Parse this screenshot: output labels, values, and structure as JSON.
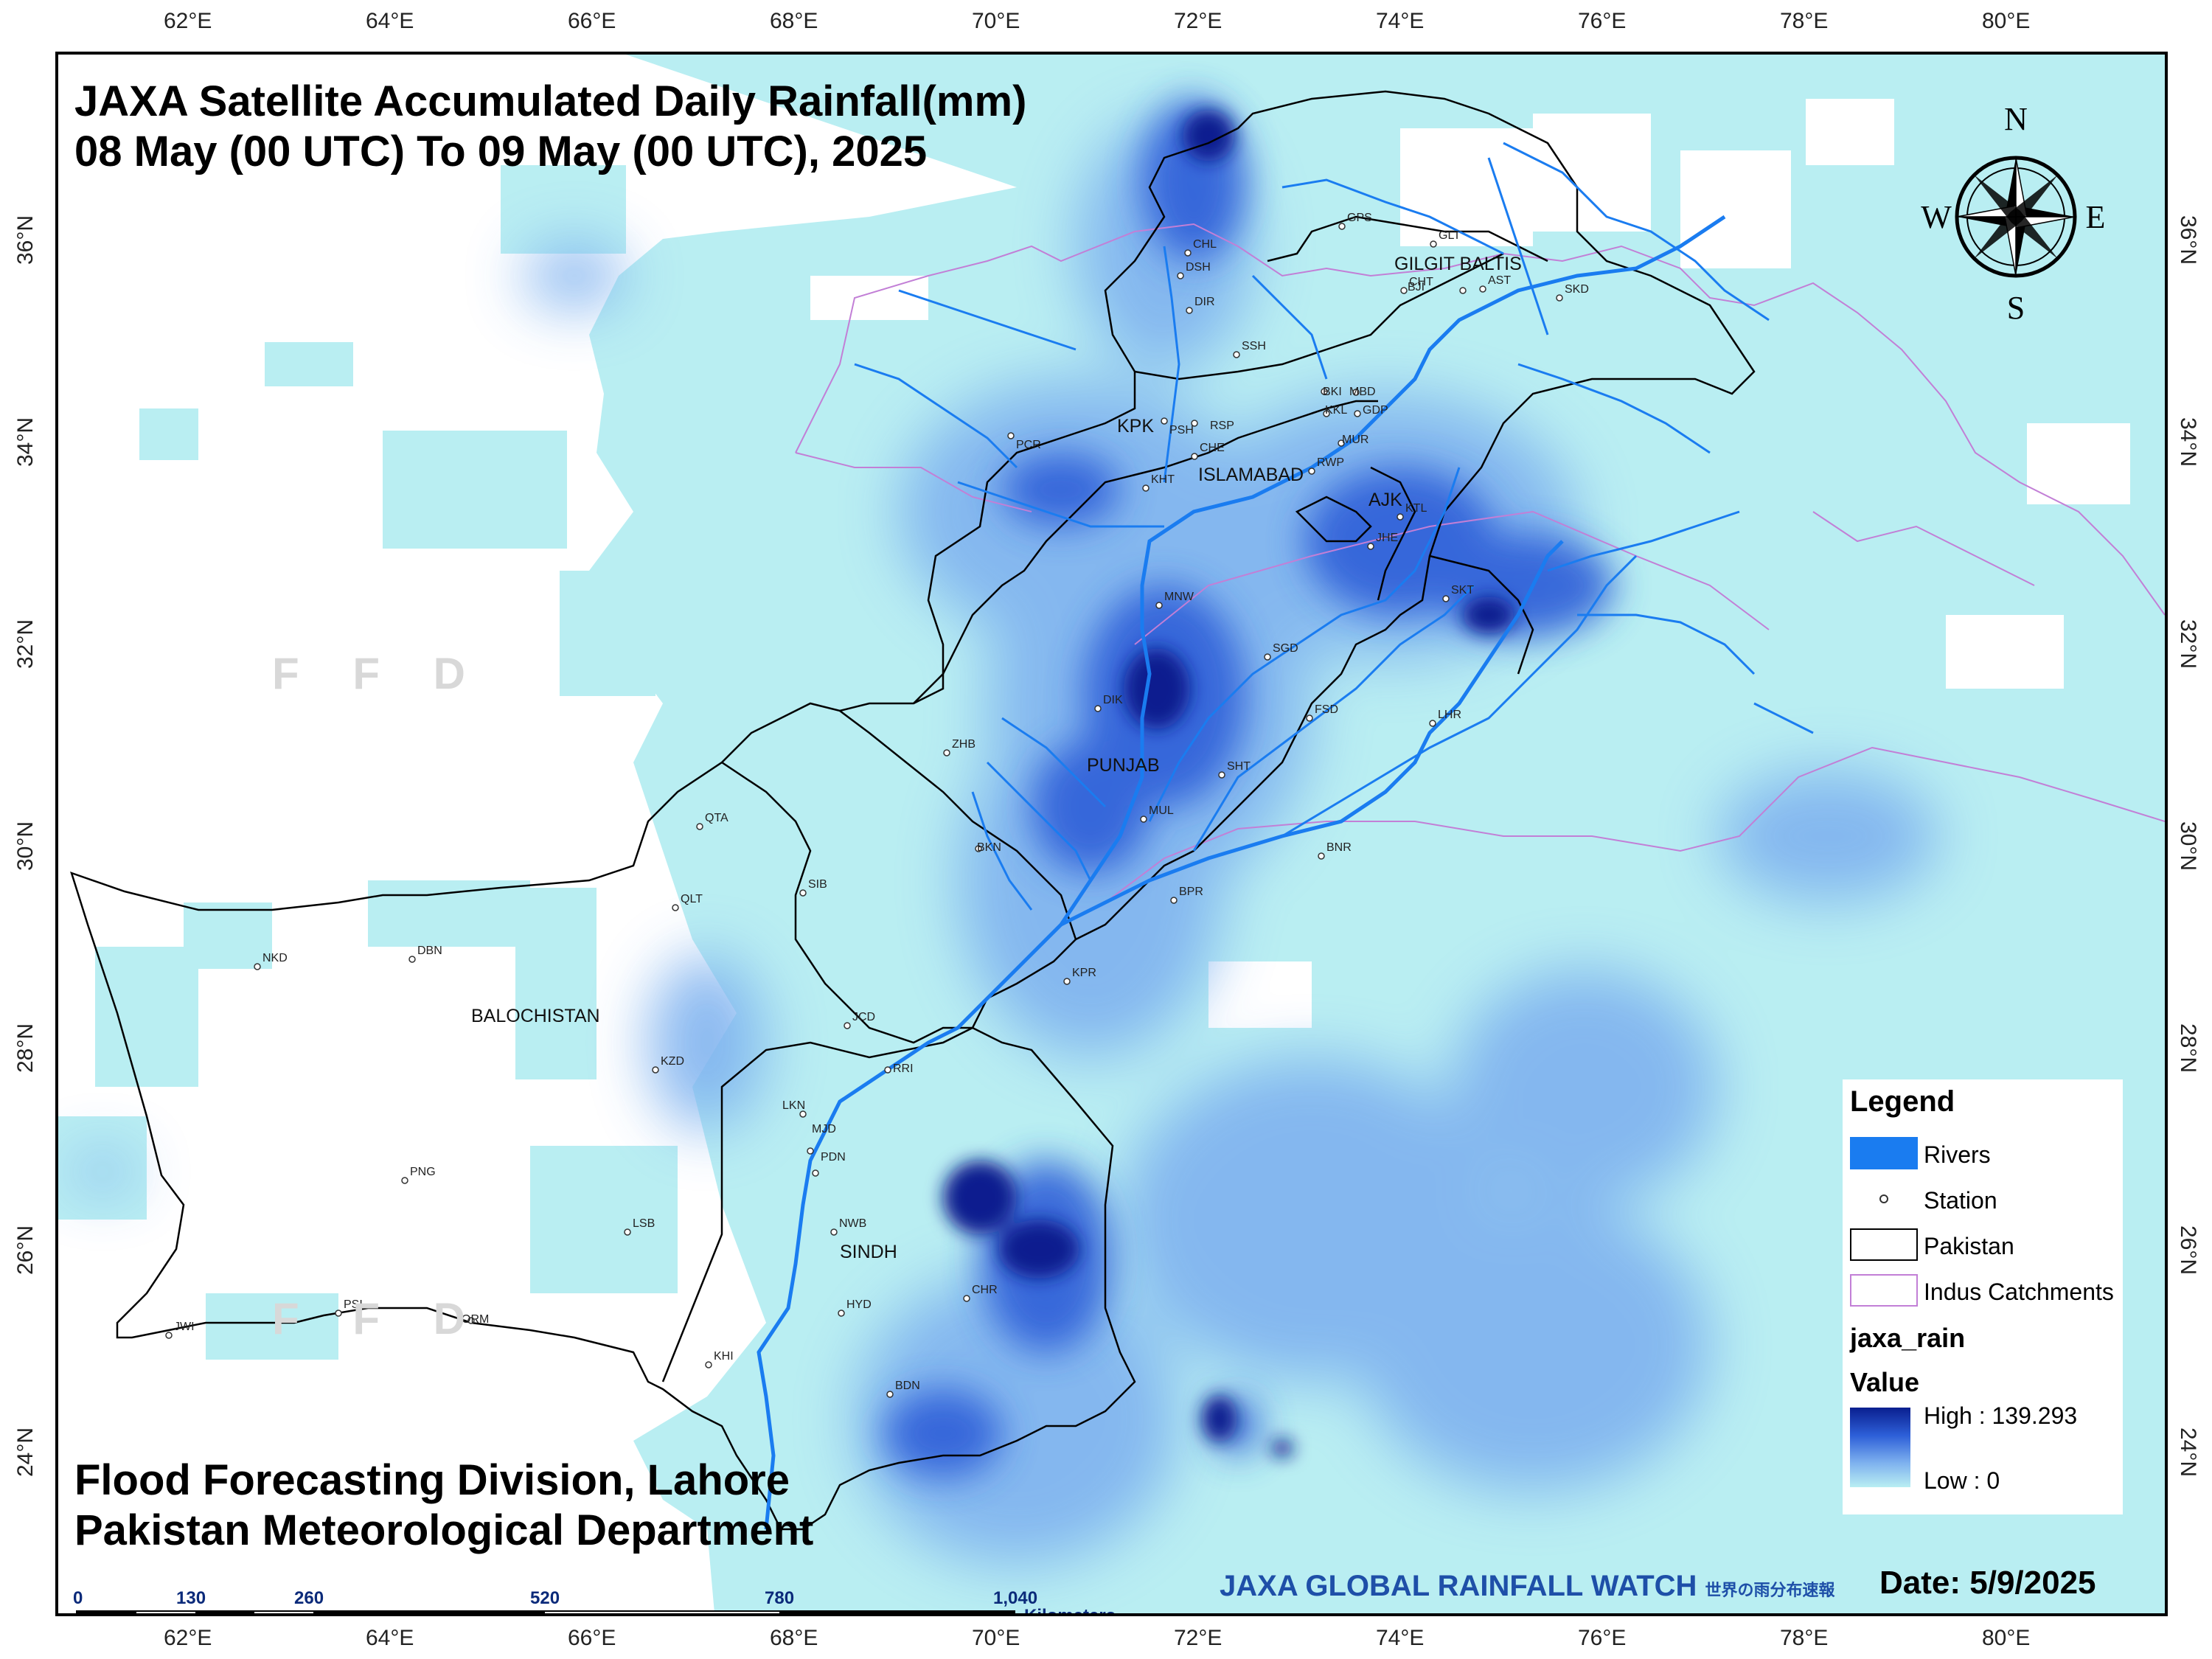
{
  "title": {
    "line1": "JAXA Satellite Accumulated Daily Rainfall(mm)",
    "line2": "08 May (00 UTC) To 09 May (00 UTC), 2025"
  },
  "footer": {
    "org1": "Flood Forecasting Division, Lahore",
    "org2": "Pakistan Meteorological Department",
    "jaxa_logo": "JAXA GLOBAL RAINFALL WATCH",
    "jaxa_logo_jp": "世界の雨分布速報",
    "date_label": "Date: 5/9/2025"
  },
  "watermark": "F F D",
  "axes": {
    "lon_ticks": [
      "62°E",
      "64°E",
      "66°E",
      "68°E",
      "70°E",
      "72°E",
      "74°E",
      "76°E",
      "78°E",
      "80°E"
    ],
    "lat_ticks": [
      "36°N",
      "34°N",
      "32°N",
      "30°N",
      "28°N",
      "26°N",
      "24°N"
    ]
  },
  "compass": {
    "n": "N",
    "s": "S",
    "e": "E",
    "w": "W"
  },
  "legend": {
    "title": "Legend",
    "items": [
      {
        "label": "Rivers",
        "icon": "river-swatch"
      },
      {
        "label": "Station",
        "icon": "station-symbol"
      },
      {
        "label": "Pakistan",
        "icon": "pakistan-boundary-swatch"
      },
      {
        "label": "Indus Catchments",
        "icon": "catchment-boundary-swatch"
      }
    ],
    "layer_name": "jaxa_rain",
    "value_label": "Value",
    "high": "High : 139.293",
    "low": "Low : 0",
    "ramp_colors": [
      "#0a1f8f",
      "#2d5fd8",
      "#7fb2ef",
      "#b9eef2"
    ]
  },
  "scale": {
    "labels": [
      "0",
      "130",
      "260",
      "520",
      "780",
      "1,040"
    ],
    "unit": "Kilometers"
  },
  "regions": [
    "KPK",
    "ISLAMABAD",
    "AJK",
    "GILGIT BALTIS",
    "PUNJAB",
    "SINDH",
    "BALOCHISTAN"
  ],
  "stations": [
    "GPS",
    "GLT",
    "CHT",
    "BJI",
    "AST",
    "SKD",
    "CHL",
    "DSH",
    "DIR",
    "SSH",
    "BKI",
    "MBD",
    "KKL",
    "GDP",
    "MUR",
    "PSH",
    "RSP",
    "CHE",
    "RWP",
    "PCR",
    "KHT",
    "KTL",
    "JHE",
    "SKT",
    "MNW",
    "SGD",
    "DIK",
    "FSD",
    "LHR",
    "ZHB",
    "SHT",
    "QTA",
    "MUL",
    "BKN",
    "BNR",
    "SIB",
    "BPR",
    "QLT",
    "NKD",
    "DBN",
    "KPR",
    "JCD",
    "KZD",
    "RRI",
    "LKN",
    "MJD",
    "PDN",
    "PNG",
    "NWB",
    "LSB",
    "HYD",
    "CHR",
    "PSI",
    "ORM",
    "JWI",
    "KHI",
    "BDN"
  ],
  "colors": {
    "light_rain": "#b9eef2",
    "moderate_rain": "#7fb2ef",
    "heavy_rain": "#2d5fd8",
    "extreme_rain": "#0a1f8f",
    "river": "#1a7cf0",
    "catchment": "#c27fd6",
    "boundary": "#000000"
  }
}
